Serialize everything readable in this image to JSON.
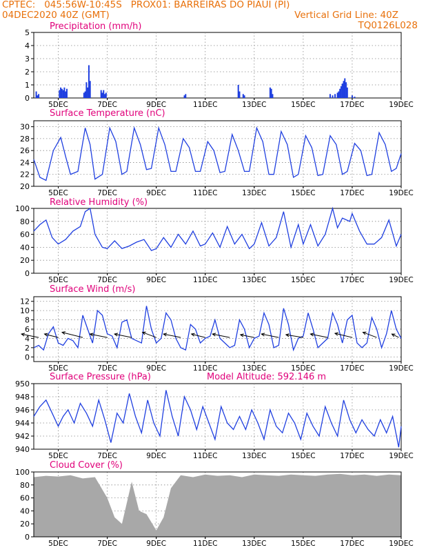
{
  "header": {
    "line1": "CPTEC:   045:56W-10:45S   PROX01: BARREIRAS DO PIAUI (PI)",
    "line2": "04DEC2020 40Z (GMT)",
    "grid_note": "Vertical Grid Line: 40Z",
    "code": "TQ0126L028"
  },
  "colors": {
    "header": "#e8700a",
    "title": "#e0007a",
    "line": "#1f3fe0",
    "cloud": "#a8a8a8"
  },
  "x_axis": {
    "start": "2020-12-04 00Z",
    "end": "2020-12-19 00Z",
    "ticks": [
      {
        "day": 5,
        "label": "5DEC"
      },
      {
        "day": 7,
        "label": "7DEC"
      },
      {
        "day": 9,
        "label": "9DEC"
      },
      {
        "day": 11,
        "label": "11DEC"
      },
      {
        "day": 13,
        "label": "13DEC"
      },
      {
        "day": 15,
        "label": "15DEC"
      },
      {
        "day": 17,
        "label": "17DEC"
      },
      {
        "day": 19,
        "label": "19DEC"
      }
    ]
  },
  "chart_data": [
    {
      "type": "bar",
      "title": "Precipitation (mm/h)",
      "ylim": [
        0,
        5
      ],
      "yticks": [
        "0",
        "1",
        "2",
        "3",
        "4",
        "5"
      ],
      "x": [
        4.1,
        4.15,
        4.2,
        5.05,
        5.1,
        5.12,
        5.15,
        5.2,
        5.25,
        5.3,
        5.35,
        6.05,
        6.1,
        6.15,
        6.2,
        6.25,
        6.3,
        6.75,
        6.8,
        6.85,
        6.9,
        6.95,
        10.15,
        10.2,
        12.35,
        12.4,
        12.55,
        12.6,
        13.65,
        13.7,
        13.75,
        16.1,
        16.2,
        16.3,
        16.4,
        16.45,
        16.5,
        16.55,
        16.6,
        16.65,
        16.7,
        16.75,
        16.8,
        17.0,
        17.1
      ],
      "values": [
        0.5,
        0.2,
        0.3,
        0.6,
        0.8,
        0.5,
        0.7,
        0.6,
        0.8,
        0.5,
        0.7,
        0.4,
        0.5,
        1.2,
        0.8,
        2.5,
        1.3,
        0.6,
        0.4,
        0.6,
        0.3,
        0.4,
        0.2,
        0.3,
        1.0,
        0.5,
        0.3,
        0.2,
        0.8,
        0.7,
        0.3,
        0.3,
        0.2,
        0.3,
        0.4,
        0.5,
        0.7,
        0.9,
        1.1,
        1.3,
        1.5,
        1.2,
        0.8,
        0.2,
        0.1
      ],
      "ylabel": "",
      "xlabel": ""
    },
    {
      "type": "line",
      "title": "Surface Temperature (nC)",
      "ylim": [
        20,
        31
      ],
      "yticks": [
        "20",
        "22",
        "24",
        "26",
        "28",
        "30"
      ],
      "x": [
        4.0,
        4.25,
        4.5,
        4.8,
        5.1,
        5.3,
        5.5,
        5.8,
        6.1,
        6.3,
        6.5,
        6.8,
        7.1,
        7.35,
        7.6,
        7.8,
        8.1,
        8.35,
        8.6,
        8.8,
        9.1,
        9.35,
        9.6,
        9.8,
        10.1,
        10.35,
        10.6,
        10.8,
        11.1,
        11.35,
        11.6,
        11.8,
        12.1,
        12.35,
        12.6,
        12.8,
        13.1,
        13.35,
        13.6,
        13.8,
        14.1,
        14.35,
        14.6,
        14.8,
        15.1,
        15.35,
        15.6,
        15.8,
        16.1,
        16.35,
        16.6,
        16.8,
        17.1,
        17.35,
        17.6,
        17.8,
        18.1,
        18.35,
        18.6,
        18.8,
        19.0
      ],
      "values": [
        24.5,
        21.5,
        21.0,
        26.0,
        28.2,
        25.0,
        22.0,
        22.5,
        29.8,
        27.0,
        21.2,
        22.0,
        29.8,
        27.5,
        22.0,
        22.5,
        29.8,
        27.0,
        22.8,
        23.0,
        29.8,
        27.0,
        22.5,
        22.5,
        28.0,
        26.5,
        22.5,
        22.5,
        27.5,
        26.0,
        22.3,
        22.5,
        28.7,
        26.0,
        22.5,
        22.5,
        29.8,
        27.5,
        22.0,
        22.0,
        29.2,
        27.0,
        21.5,
        22.0,
        28.5,
        26.5,
        21.8,
        22.0,
        28.5,
        27.0,
        22.0,
        22.5,
        27.2,
        26.0,
        21.8,
        22.0,
        29.0,
        27.0,
        22.5,
        23.0,
        25.5
      ],
      "ylabel": "",
      "xlabel": ""
    },
    {
      "type": "line",
      "title": "Relative Humidity (%)",
      "ylim": [
        0,
        100
      ],
      "yticks": [
        "0",
        "20",
        "40",
        "60",
        "80",
        "100"
      ],
      "x": [
        4.0,
        4.25,
        4.5,
        4.75,
        5.0,
        5.3,
        5.6,
        5.9,
        6.1,
        6.3,
        6.5,
        6.8,
        7.0,
        7.3,
        7.6,
        7.9,
        8.2,
        8.5,
        8.8,
        9.0,
        9.3,
        9.6,
        9.9,
        10.2,
        10.5,
        10.8,
        11.0,
        11.3,
        11.6,
        11.9,
        12.2,
        12.5,
        12.8,
        13.0,
        13.3,
        13.6,
        13.9,
        14.2,
        14.5,
        14.8,
        15.0,
        15.3,
        15.6,
        15.9,
        16.2,
        16.4,
        16.6,
        16.9,
        17.0,
        17.3,
        17.6,
        17.9,
        18.2,
        18.5,
        18.8,
        19.0
      ],
      "values": [
        65,
        75,
        82,
        55,
        45,
        52,
        65,
        72,
        95,
        100,
        60,
        40,
        38,
        50,
        38,
        42,
        48,
        52,
        35,
        38,
        55,
        40,
        60,
        45,
        65,
        42,
        45,
        62,
        40,
        72,
        45,
        60,
        38,
        45,
        78,
        42,
        55,
        95,
        40,
        75,
        45,
        75,
        42,
        60,
        100,
        70,
        85,
        80,
        92,
        65,
        45,
        45,
        55,
        82,
        42,
        60
      ],
      "ylabel": "",
      "xlabel": ""
    },
    {
      "type": "line",
      "title": "Surface Wind (m/s)",
      "ylim": [
        -1,
        13
      ],
      "yticks": [
        "0",
        "2",
        "4",
        "6",
        "8",
        "10",
        "12"
      ],
      "x": [
        4.0,
        4.2,
        4.4,
        4.6,
        4.8,
        5.0,
        5.2,
        5.4,
        5.6,
        5.8,
        6.0,
        6.2,
        6.4,
        6.6,
        6.8,
        7.0,
        7.2,
        7.4,
        7.6,
        7.8,
        8.0,
        8.2,
        8.4,
        8.6,
        8.8,
        9.0,
        9.2,
        9.4,
        9.6,
        9.8,
        10.0,
        10.2,
        10.4,
        10.6,
        10.8,
        11.0,
        11.2,
        11.4,
        11.6,
        11.8,
        12.0,
        12.2,
        12.4,
        12.6,
        12.8,
        13.0,
        13.2,
        13.4,
        13.6,
        13.8,
        14.0,
        14.2,
        14.4,
        14.6,
        14.8,
        15.0,
        15.2,
        15.4,
        15.6,
        15.8,
        16.0,
        16.2,
        16.4,
        16.6,
        16.8,
        17.0,
        17.2,
        17.4,
        17.6,
        17.8,
        18.0,
        18.2,
        18.4,
        18.6,
        18.8,
        19.0
      ],
      "values": [
        2,
        2.5,
        1.5,
        5,
        6.5,
        3,
        2.5,
        4,
        3.5,
        2,
        9,
        6,
        3,
        10,
        9,
        5,
        4.5,
        2,
        7.5,
        8,
        4,
        3.5,
        3,
        11,
        6,
        3,
        4,
        9.5,
        8,
        4,
        2,
        1.5,
        7,
        6,
        3,
        4,
        4.5,
        8,
        4,
        3,
        2,
        2.5,
        8,
        6,
        2,
        4,
        4.5,
        9.5,
        7,
        2,
        2.5,
        10.5,
        7,
        1.5,
        4,
        4.5,
        9.5,
        6,
        2,
        3,
        4,
        9.5,
        7,
        3,
        8,
        9,
        3,
        2,
        3,
        8.5,
        6,
        2,
        5,
        10,
        6,
        4
      ],
      "barbs": [
        {
          "x": 4.2,
          "u": -5,
          "v": 1
        },
        {
          "x": 5.0,
          "u": -4,
          "v": 1
        },
        {
          "x": 6.0,
          "u": -6,
          "v": 1.5
        },
        {
          "x": 7.0,
          "u": -5,
          "v": 1
        },
        {
          "x": 8.0,
          "u": -5,
          "v": 1
        },
        {
          "x": 9.0,
          "u": -4,
          "v": 1.5
        },
        {
          "x": 10.0,
          "u": -5,
          "v": 1
        },
        {
          "x": 11.0,
          "u": -4,
          "v": 1
        },
        {
          "x": 12.0,
          "u": -5,
          "v": 1
        },
        {
          "x": 13.0,
          "u": -4,
          "v": 0.8
        },
        {
          "x": 14.0,
          "u": -5,
          "v": 1
        },
        {
          "x": 15.0,
          "u": -5,
          "v": 0.8
        },
        {
          "x": 16.0,
          "u": -5,
          "v": 1
        },
        {
          "x": 17.0,
          "u": -5,
          "v": 1.2
        },
        {
          "x": 18.0,
          "u": -4,
          "v": 1.5
        },
        {
          "x": 18.9,
          "u": -2,
          "v": 1
        }
      ],
      "ylabel": "",
      "xlabel": ""
    },
    {
      "type": "line",
      "title": "Surface Pressure (hPa)",
      "subtitle": "Model Altitude: 592.146 m",
      "ylim": [
        940,
        950
      ],
      "yticks": [
        "940",
        "942",
        "944",
        "946",
        "948",
        "950"
      ],
      "x": [
        4.0,
        4.25,
        4.5,
        4.75,
        5.0,
        5.2,
        5.4,
        5.65,
        5.9,
        6.15,
        6.4,
        6.65,
        6.9,
        7.15,
        7.4,
        7.65,
        7.9,
        8.15,
        8.4,
        8.65,
        8.9,
        9.15,
        9.4,
        9.65,
        9.9,
        10.15,
        10.4,
        10.65,
        10.9,
        11.15,
        11.4,
        11.65,
        11.9,
        12.15,
        12.4,
        12.65,
        12.9,
        13.15,
        13.4,
        13.65,
        13.9,
        14.15,
        14.4,
        14.65,
        14.9,
        15.15,
        15.4,
        15.65,
        15.9,
        16.15,
        16.4,
        16.65,
        16.9,
        17.15,
        17.4,
        17.65,
        17.9,
        18.15,
        18.4,
        18.65,
        18.9,
        19.0
      ],
      "values": [
        945,
        946.5,
        947.5,
        945.5,
        943.5,
        945,
        946,
        944,
        947,
        945.5,
        943.5,
        947.5,
        944.5,
        941,
        945.5,
        944,
        948.5,
        945,
        942.5,
        947.5,
        944,
        942,
        949,
        945,
        942,
        948,
        946,
        943,
        946.5,
        944,
        941.5,
        946.5,
        944,
        943,
        945,
        943,
        946,
        944,
        941.5,
        946,
        943.5,
        942.5,
        945.5,
        944,
        941.5,
        945.5,
        943.5,
        942,
        946.5,
        944,
        942,
        947.5,
        944.5,
        942.5,
        944.5,
        943,
        942,
        944.5,
        942.5,
        945,
        940.3,
        943.5
      ],
      "ylabel": "",
      "xlabel": ""
    },
    {
      "type": "area",
      "title": "Cloud Cover (%)",
      "ylim": [
        0,
        100
      ],
      "yticks": [
        "0",
        "20",
        "40",
        "60",
        "80",
        "100"
      ],
      "x": [
        4.0,
        4.5,
        5.0,
        5.5,
        6.0,
        6.5,
        7.0,
        7.3,
        7.6,
        8.0,
        8.3,
        8.6,
        9.0,
        9.3,
        9.6,
        10.0,
        10.5,
        11.0,
        11.5,
        12.0,
        12.5,
        13.0,
        13.5,
        14.0,
        14.5,
        15.0,
        15.5,
        16.0,
        16.5,
        17.0,
        17.5,
        18.0,
        18.5,
        19.0
      ],
      "values": [
        92,
        94,
        93,
        95,
        90,
        92,
        60,
        30,
        20,
        85,
        40,
        35,
        10,
        30,
        75,
        95,
        92,
        96,
        94,
        95,
        92,
        96,
        95,
        94,
        96,
        95,
        94,
        96,
        97,
        95,
        96,
        94,
        96,
        95
      ],
      "ylabel": "",
      "xlabel": ""
    }
  ]
}
